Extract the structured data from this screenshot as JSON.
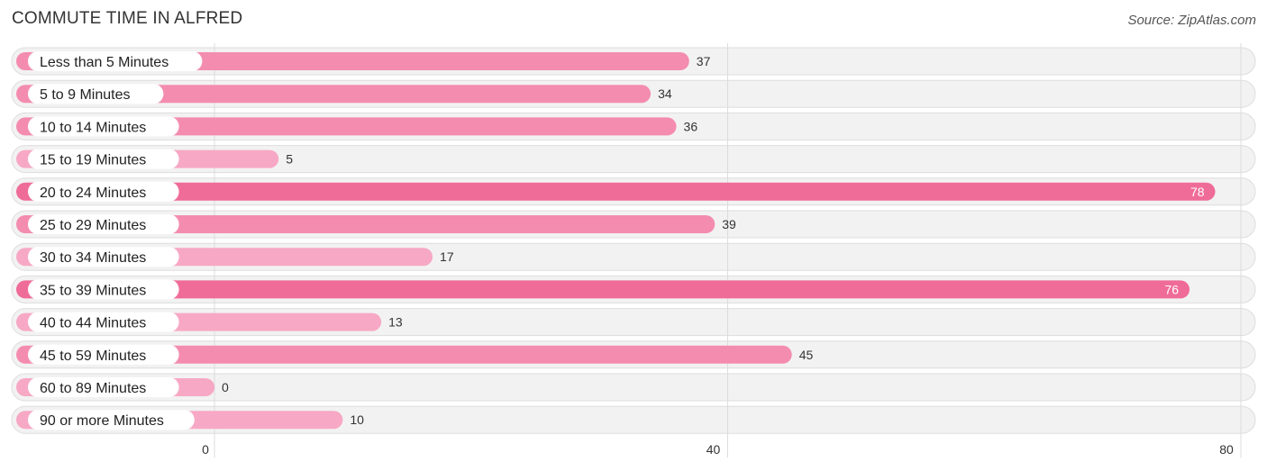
{
  "header": {
    "title": "COMMUTE TIME IN ALFRED",
    "source": "Source: ZipAtlas.com"
  },
  "colors": {
    "bar_strong": "#f06c98",
    "bar_medium": "#f48cb0",
    "bar_light": "#f7a8c4",
    "track": "#f2f2f2"
  },
  "chart_data": {
    "type": "bar",
    "orientation": "horizontal",
    "title": "COMMUTE TIME IN ALFRED",
    "categories": [
      "Less than 5 Minutes",
      "5 to 9 Minutes",
      "10 to 14 Minutes",
      "15 to 19 Minutes",
      "20 to 24 Minutes",
      "25 to 29 Minutes",
      "30 to 34 Minutes",
      "35 to 39 Minutes",
      "40 to 44 Minutes",
      "45 to 59 Minutes",
      "60 to 89 Minutes",
      "90 or more Minutes"
    ],
    "values": [
      37,
      34,
      36,
      5,
      78,
      39,
      17,
      76,
      13,
      45,
      0,
      10
    ],
    "xlim": [
      0,
      80
    ],
    "xticks": [
      0,
      40,
      80
    ],
    "grid": true
  }
}
